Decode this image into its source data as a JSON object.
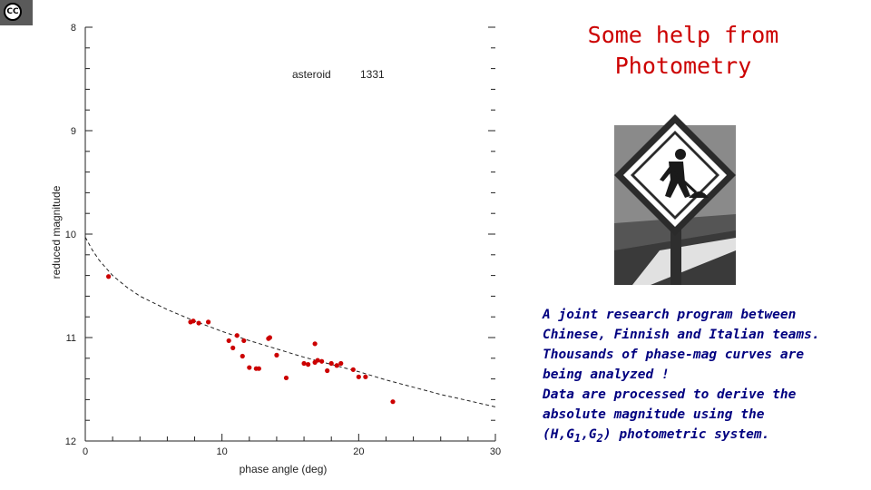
{
  "slide": {
    "title_line1": "Some help from",
    "title_line2": "Photometry",
    "text_lines": [
      "A joint research program between",
      "Chinese, Finnish and Italian teams.",
      "Thousands of phase-mag curves are",
      "being analyzed !",
      "Data are processed to derive the",
      "absolute magnitude using the"
    ],
    "last_line_prefix": "(H,G",
    "sub1": "1",
    "comma": ",G",
    "sub2": "2",
    "last_line_suffix": ") photometric system."
  },
  "badge": {
    "icon": "creative-commons-icon",
    "text": "CC"
  },
  "colors": {
    "title": "#cc0000",
    "body_text": "#000080",
    "points": "#cc0000",
    "sign": "#3a3a3a"
  },
  "chart_data": {
    "type": "scatter",
    "xlabel": "phase angle (deg)",
    "ylabel": "reduced magnitude",
    "xlim": [
      0,
      30
    ],
    "ylim": [
      8,
      12
    ],
    "y_inverted": true,
    "x_ticks": [
      0,
      10,
      20,
      30
    ],
    "y_ticks": [
      8,
      9,
      10,
      11,
      12
    ],
    "annotation_label": "asteroid",
    "annotation_number": "1331",
    "points": [
      {
        "x": 1.7,
        "y": 10.41
      },
      {
        "x": 7.7,
        "y": 10.85
      },
      {
        "x": 7.9,
        "y": 10.84
      },
      {
        "x": 8.3,
        "y": 10.86
      },
      {
        "x": 9.0,
        "y": 10.85
      },
      {
        "x": 10.5,
        "y": 11.03
      },
      {
        "x": 10.8,
        "y": 11.1
      },
      {
        "x": 11.1,
        "y": 10.98
      },
      {
        "x": 11.5,
        "y": 11.18
      },
      {
        "x": 11.6,
        "y": 11.03
      },
      {
        "x": 12.0,
        "y": 11.29
      },
      {
        "x": 12.5,
        "y": 11.3
      },
      {
        "x": 12.7,
        "y": 11.3
      },
      {
        "x": 13.4,
        "y": 11.01
      },
      {
        "x": 13.5,
        "y": 11.0
      },
      {
        "x": 14.0,
        "y": 11.17
      },
      {
        "x": 14.7,
        "y": 11.39
      },
      {
        "x": 16.0,
        "y": 11.25
      },
      {
        "x": 16.3,
        "y": 11.26
      },
      {
        "x": 16.8,
        "y": 11.06
      },
      {
        "x": 16.8,
        "y": 11.24
      },
      {
        "x": 17.0,
        "y": 11.22
      },
      {
        "x": 17.3,
        "y": 11.23
      },
      {
        "x": 17.7,
        "y": 11.32
      },
      {
        "x": 18.0,
        "y": 11.25
      },
      {
        "x": 18.4,
        "y": 11.27
      },
      {
        "x": 18.7,
        "y": 11.25
      },
      {
        "x": 19.6,
        "y": 11.31
      },
      {
        "x": 20.0,
        "y": 11.38
      },
      {
        "x": 20.5,
        "y": 11.38
      },
      {
        "x": 22.5,
        "y": 11.62
      }
    ],
    "fit_curve": [
      {
        "x": 0.0,
        "y": 10.03
      },
      {
        "x": 0.5,
        "y": 10.15
      },
      {
        "x": 1.0,
        "y": 10.25
      },
      {
        "x": 2.0,
        "y": 10.4
      },
      {
        "x": 3.0,
        "y": 10.51
      },
      {
        "x": 4.0,
        "y": 10.6
      },
      {
        "x": 6.0,
        "y": 10.73
      },
      {
        "x": 8.0,
        "y": 10.84
      },
      {
        "x": 10.0,
        "y": 10.94
      },
      {
        "x": 12.0,
        "y": 11.03
      },
      {
        "x": 14.0,
        "y": 11.11
      },
      {
        "x": 16.0,
        "y": 11.19
      },
      {
        "x": 18.0,
        "y": 11.26
      },
      {
        "x": 20.0,
        "y": 11.33
      },
      {
        "x": 22.0,
        "y": 11.41
      },
      {
        "x": 24.0,
        "y": 11.48
      },
      {
        "x": 26.0,
        "y": 11.55
      },
      {
        "x": 28.0,
        "y": 11.61
      },
      {
        "x": 30.0,
        "y": 11.67
      }
    ]
  }
}
